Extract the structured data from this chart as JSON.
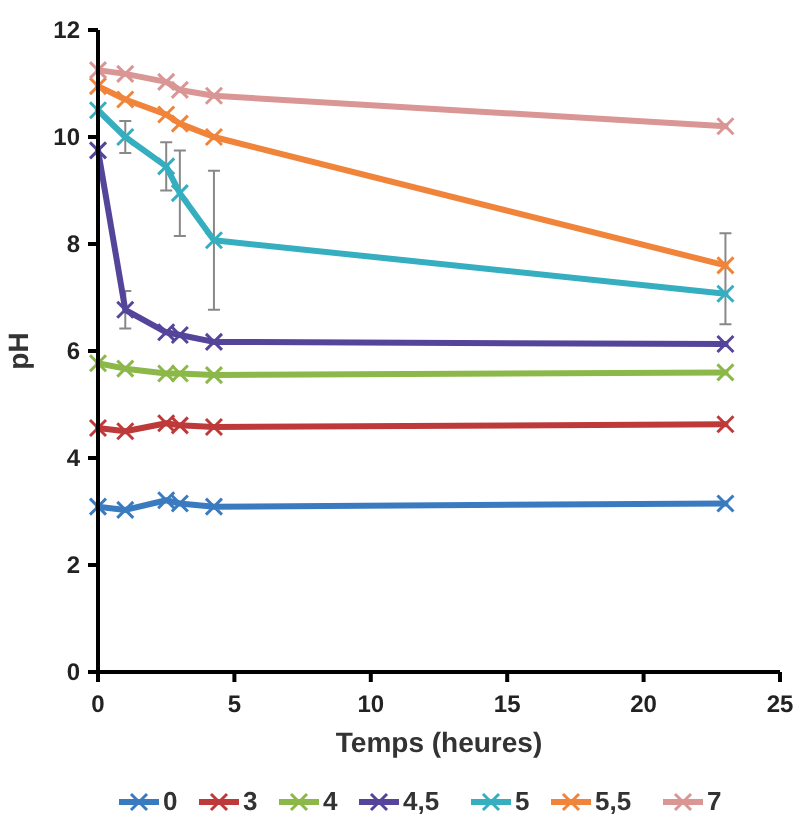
{
  "chart_data": {
    "type": "line",
    "xlabel": "Temps (heures)",
    "ylabel": "pH",
    "x": [
      0,
      1,
      2.5,
      3,
      4.25,
      23
    ],
    "xlim": [
      0,
      25
    ],
    "xticks": [
      0,
      5,
      10,
      15,
      20,
      25
    ],
    "ylim": [
      0,
      12
    ],
    "yticks": [
      0,
      2,
      4,
      6,
      8,
      10,
      12
    ],
    "marker": "cross",
    "legend": "bottom",
    "grid": false,
    "series": [
      {
        "name": "0",
        "color": "#3a7bc0",
        "values": [
          3.09,
          3.03,
          3.21,
          3.15,
          3.09,
          3.15
        ]
      },
      {
        "name": "3",
        "color": "#be3a3a",
        "values": [
          4.56,
          4.5,
          4.65,
          4.61,
          4.58,
          4.63
        ]
      },
      {
        "name": "4",
        "color": "#8cb84a",
        "values": [
          5.77,
          5.67,
          5.58,
          5.58,
          5.55,
          5.6
        ]
      },
      {
        "name": "4,5",
        "color": "#54449a",
        "values": [
          9.75,
          6.77,
          6.35,
          6.3,
          6.17,
          6.13
        ],
        "errors": [
          null,
          0.35,
          null,
          null,
          null,
          null
        ]
      },
      {
        "name": "5",
        "color": "#35aec0",
        "values": [
          10.5,
          10.0,
          9.45,
          8.95,
          8.07,
          7.07
        ],
        "errors": [
          null,
          0.3,
          0.45,
          0.8,
          1.3,
          [
            6.5,
            8.2
          ]
        ]
      },
      {
        "name": "5,5",
        "color": "#f0843a",
        "values": [
          10.95,
          10.7,
          10.42,
          10.25,
          10.0,
          7.6
        ]
      },
      {
        "name": "7",
        "color": "#d99694",
        "values": [
          11.25,
          11.18,
          11.03,
          10.88,
          10.77,
          10.2
        ]
      }
    ]
  }
}
